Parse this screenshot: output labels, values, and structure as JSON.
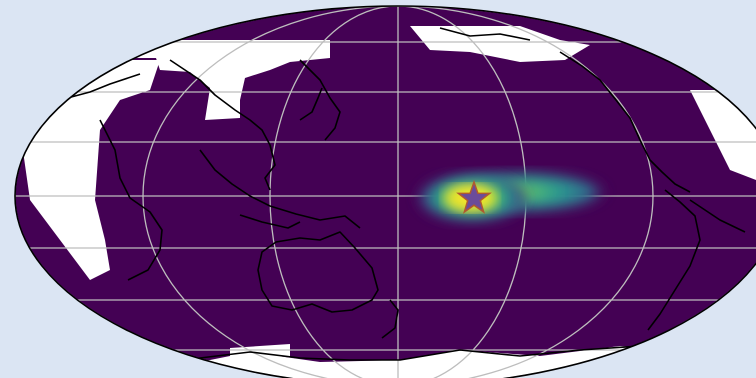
{
  "figure": {
    "projection": "mollweide",
    "central_meridian": "180",
    "colormap": "viridis",
    "ocean_color": "#440154",
    "land_mask_color": "#ffffff",
    "graticule_color": "#bdbdbd",
    "coastline_color": "#000000",
    "page_background": "#dbe5f3",
    "marker": {
      "shape": "star",
      "fill": "#6b4c9a",
      "stroke": "#b05a2e"
    },
    "heat_colors": [
      "#440154",
      "#2a788e",
      "#22a884",
      "#7ad151",
      "#fde725"
    ]
  }
}
